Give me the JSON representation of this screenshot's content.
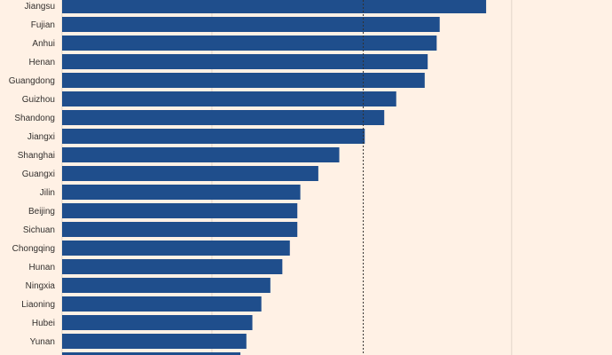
{
  "chart_data": {
    "type": "bar",
    "orientation": "horizontal",
    "categories": [
      "Jiangsu",
      "Fujian",
      "Anhui",
      "Henan",
      "Guangdong",
      "Guizhou",
      "Shandong",
      "Jiangxi",
      "Shanghai",
      "Guangxi",
      "Jilin",
      "Beijing",
      "Sichuan",
      "Chongqing",
      "Hunan",
      "Ningxia",
      "Liaoning",
      "Hubei",
      "Yunan"
    ],
    "series": [
      {
        "values": [
          283,
          252,
          250,
          244,
          242,
          223,
          215,
          202,
          185,
          171,
          159,
          157,
          157,
          152,
          147,
          139,
          133,
          127,
          123
        ]
      }
    ],
    "partial_final_value": 119,
    "reference_line": {
      "value": 201,
      "style": "dotted"
    },
    "gridlines": [
      100,
      300
    ],
    "xlim": [
      0,
      367
    ],
    "grid": true,
    "colors": {
      "bar": "#1F4E8C",
      "background": "#FFF1E5",
      "grid": "#E2D6C9",
      "reference": "#33302E",
      "text": "#33302E"
    }
  }
}
